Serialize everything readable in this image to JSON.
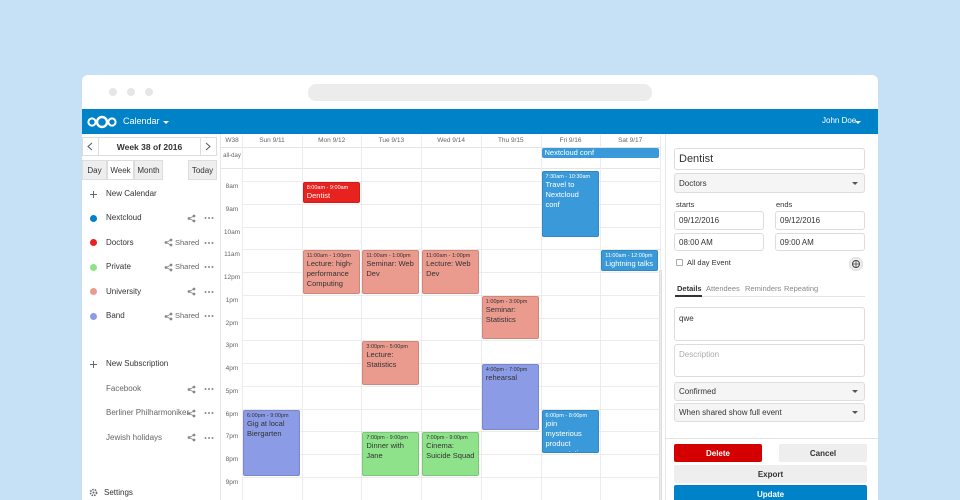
{
  "header": {
    "app": "Calendar",
    "user": "John Doe"
  },
  "sidebar": {
    "week": "Week 38 of 2016",
    "views": [
      "Day",
      "Week",
      "Month"
    ],
    "today": "Today",
    "new_calendar": "New Calendar",
    "calendars": [
      {
        "name": "Nextcloud"
      },
      {
        "name": "Doctors",
        "shared": "Shared"
      },
      {
        "name": "Private",
        "shared": "Shared"
      },
      {
        "name": "University"
      },
      {
        "name": "Band",
        "shared": "Shared"
      }
    ],
    "new_subscription": "New Subscription",
    "subscriptions": [
      "Facebook",
      "Berliner Philharmoniker",
      "Jewish holidays"
    ],
    "settings": "Settings"
  },
  "calendar": {
    "week": "W38",
    "days": [
      "Sun 9/11",
      "Mon 9/12",
      "Tue 9/13",
      "Wed 9/14",
      "Thu 9/15",
      "Fri 9/16",
      "Sat 9/17"
    ],
    "all_day": "all-day",
    "hours": [
      "8am",
      "9am",
      "10am",
      "11am",
      "12pm",
      "1pm",
      "2pm",
      "3pm",
      "4pm",
      "5pm",
      "6pm",
      "7pm",
      "8pm",
      "9pm"
    ],
    "all_day_events": [
      {
        "title": "Nextcloud conf"
      }
    ],
    "events": [
      {
        "time": "8:00am - 9:00am",
        "title": "Dentist"
      },
      {
        "time": "7:30am - 10:30am",
        "title": "Travel to Nextcloud conf"
      },
      {
        "time": "11:00am - 1:00pm",
        "title": "Lecture: high-performance Computing"
      },
      {
        "time": "11:00am - 1:00pm",
        "title": "Seminar: Web Dev"
      },
      {
        "time": "11:00am - 1:00pm",
        "title": "Lecture: Web Dev"
      },
      {
        "time": "11:00am - 12:00pm",
        "title": "Lightning talks"
      },
      {
        "time": "1:00pm - 3:00pm",
        "title": "Seminar: Statistics"
      },
      {
        "time": "3:00pm - 5:00pm",
        "title": "Lecture: Statistics"
      },
      {
        "time": "4:00pm - 7:00pm",
        "title": "rehearsal"
      },
      {
        "time": "6:00pm - 9:00pm",
        "title": "Gig at local Biergarten"
      },
      {
        "time": "6:00pm - 8:00pm",
        "title": "join mysterious product presentation"
      },
      {
        "time": "7:00pm - 9:00pm",
        "title": "Dinner with Jane"
      },
      {
        "time": "7:00pm - 9:00pm",
        "title": "Cinema: Suicide Squad"
      }
    ]
  },
  "editor": {
    "title": "Dentist",
    "calendar": "Doctors",
    "starts": "starts",
    "ends": "ends",
    "start_date": "09/12/2016",
    "end_date": "09/12/2016",
    "start_time": "08:00 AM",
    "end_time": "09:00 AM",
    "all_day": "All day Event",
    "tabs": [
      "Details",
      "Attendees",
      "Reminders",
      "Repeating"
    ],
    "notes": "qwe",
    "description": "Description",
    "status": "Confirmed",
    "visibility": "When shared show full event",
    "buttons": {
      "delete": "Delete",
      "cancel": "Cancel",
      "export": "Export",
      "update": "Update"
    }
  }
}
